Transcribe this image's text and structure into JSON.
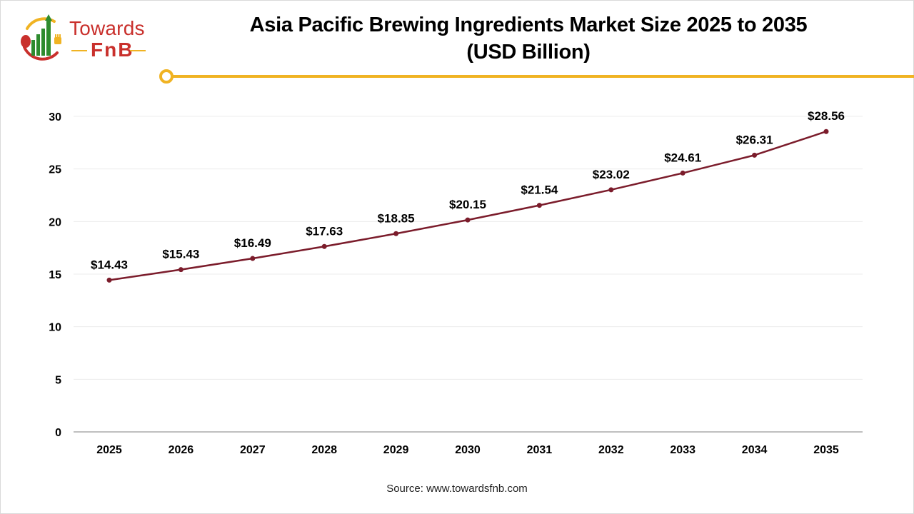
{
  "brand": {
    "logo_word1": "Towards",
    "logo_word2": "FnB",
    "colors": {
      "red": "#c9302c",
      "green": "#2e8b2e",
      "gold": "#f0b323"
    }
  },
  "header": {
    "title_line1": "Asia Pacific Brewing Ingredients Market Size 2025 to 2035",
    "title_line2": "(USD Billion)"
  },
  "footer": {
    "source": "Source: www.towardsfnb.com"
  },
  "chart_data": {
    "type": "line",
    "title": "Asia Pacific Brewing Ingredients Market Size 2025 to 2035 (USD Billion)",
    "xlabel": "",
    "ylabel": "",
    "categories": [
      "2025",
      "2026",
      "2027",
      "2028",
      "2029",
      "2030",
      "2031",
      "2032",
      "2033",
      "2034",
      "2035"
    ],
    "series": [
      {
        "name": "Market Size (USD Billion)",
        "color": "#7b1c2b",
        "values": [
          14.43,
          15.43,
          16.49,
          17.63,
          18.85,
          20.15,
          21.54,
          23.02,
          24.61,
          26.31,
          28.56
        ],
        "labels": [
          "$14.43",
          "$15.43",
          "$16.49",
          "$17.63",
          "$18.85",
          "$20.15",
          "$21.54",
          "$23.02",
          "$24.61",
          "$26.31",
          "$28.56"
        ]
      }
    ],
    "ylim": [
      0,
      30
    ],
    "yticks": [
      0,
      5,
      10,
      15,
      20,
      25,
      30
    ],
    "grid": true,
    "legend": "none"
  }
}
